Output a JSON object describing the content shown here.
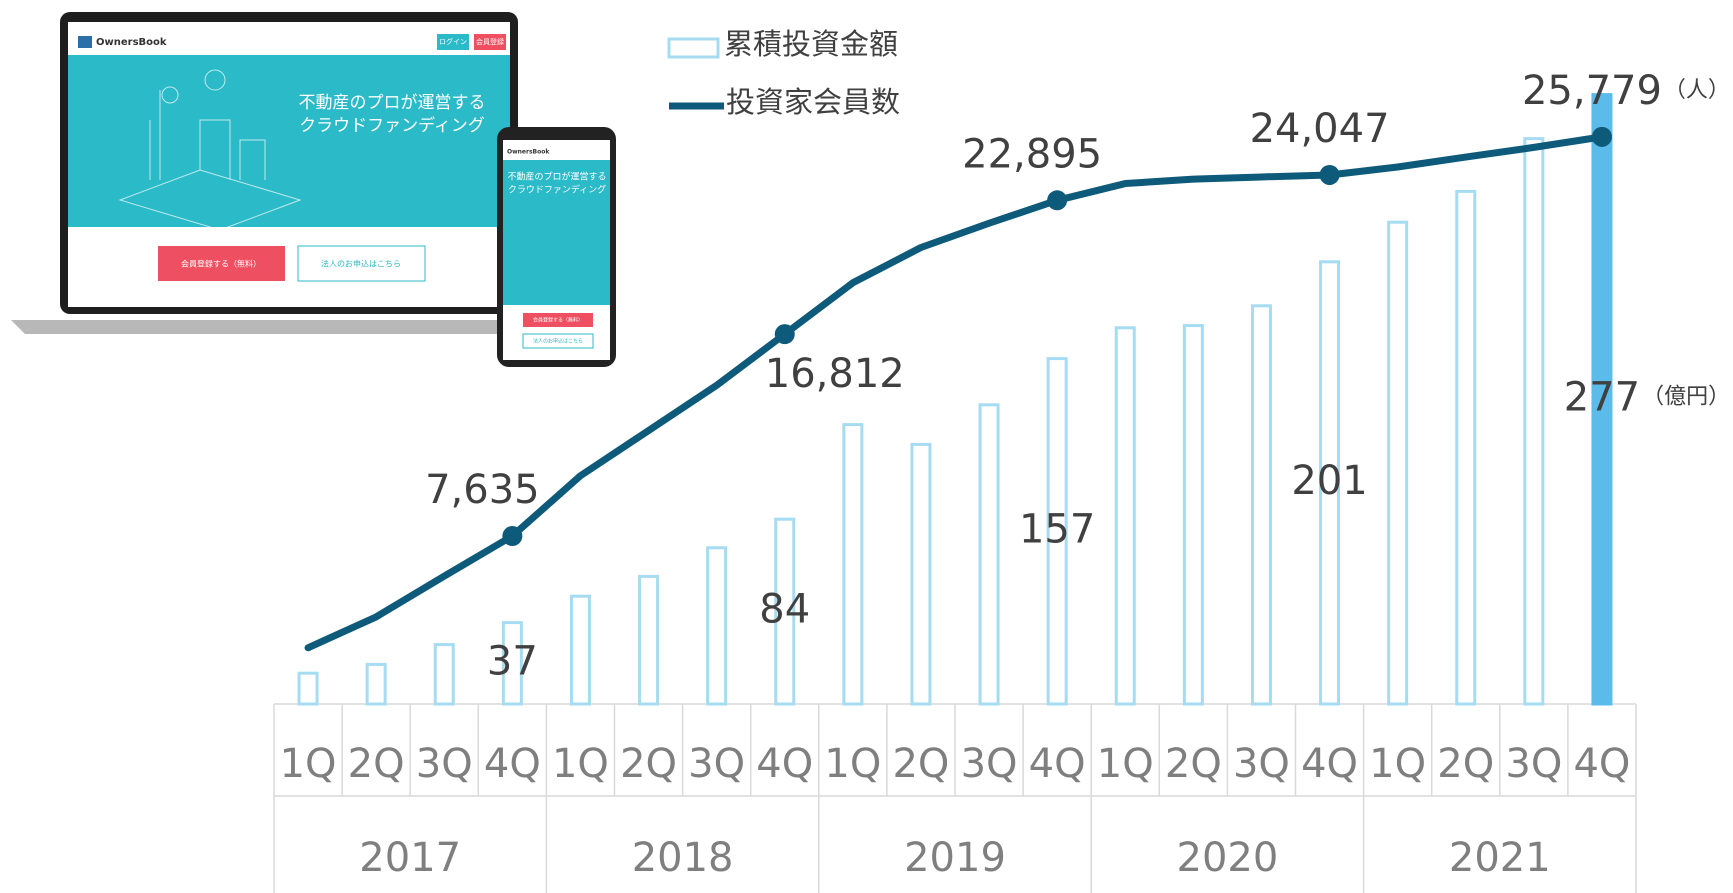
{
  "chart_data": {
    "type": "bar-line",
    "categories": [
      "1Q",
      "2Q",
      "3Q",
      "4Q",
      "1Q",
      "2Q",
      "3Q",
      "4Q",
      "1Q",
      "2Q",
      "3Q",
      "4Q",
      "1Q",
      "2Q",
      "3Q",
      "4Q",
      "1Q",
      "2Q",
      "3Q",
      "4Q"
    ],
    "groups": [
      "2017",
      "2018",
      "2019",
      "2020",
      "2021"
    ],
    "series": [
      {
        "name": "累積投資金額",
        "type": "bar",
        "unit": "（億円）",
        "color": "#a6dcf2",
        "fill_colors": [
          null,
          null,
          null,
          null,
          null,
          null,
          null,
          null,
          null,
          null,
          null,
          null,
          null,
          null,
          null,
          null,
          null,
          null,
          null,
          "#5bbcec"
        ],
        "values": [
          14,
          18,
          27,
          37,
          49,
          58,
          71,
          84,
          127,
          118,
          136,
          157,
          171,
          172,
          181,
          201,
          219,
          233,
          257,
          277
        ],
        "value_labels": [
          null,
          null,
          null,
          "37",
          null,
          null,
          null,
          "84",
          null,
          null,
          null,
          "157",
          null,
          null,
          null,
          "201",
          null,
          null,
          null,
          "277"
        ]
      },
      {
        "name": "投資家会員数",
        "type": "line",
        "axis": "y2",
        "unit": "（人）",
        "color": "#0e5a7a",
        "values": [
          2556,
          3960,
          5814,
          7635,
          10375,
          12430,
          14485,
          16812,
          19146,
          20750,
          21852,
          22895,
          23657,
          23857,
          23957,
          24047,
          24408,
          24860,
          25300,
          25779
        ],
        "value_labels": [
          null,
          null,
          null,
          "7,635",
          null,
          null,
          null,
          "16,812",
          null,
          null,
          null,
          "22,895",
          null,
          null,
          null,
          "24,047",
          null,
          null,
          null,
          "25,779"
        ]
      }
    ],
    "ylim": [
      0,
      300
    ],
    "y2lim": [
      0,
      30000
    ]
  },
  "mockup": {
    "brand": "OwnersBook",
    "headline": [
      "不動産のプロが運営する",
      "クラウドファンディング"
    ],
    "buttons": [
      "会員登録する（無料）",
      "法人のお申込はこちら"
    ],
    "nav_buttons": [
      "ログイン",
      "会員登録"
    ]
  }
}
